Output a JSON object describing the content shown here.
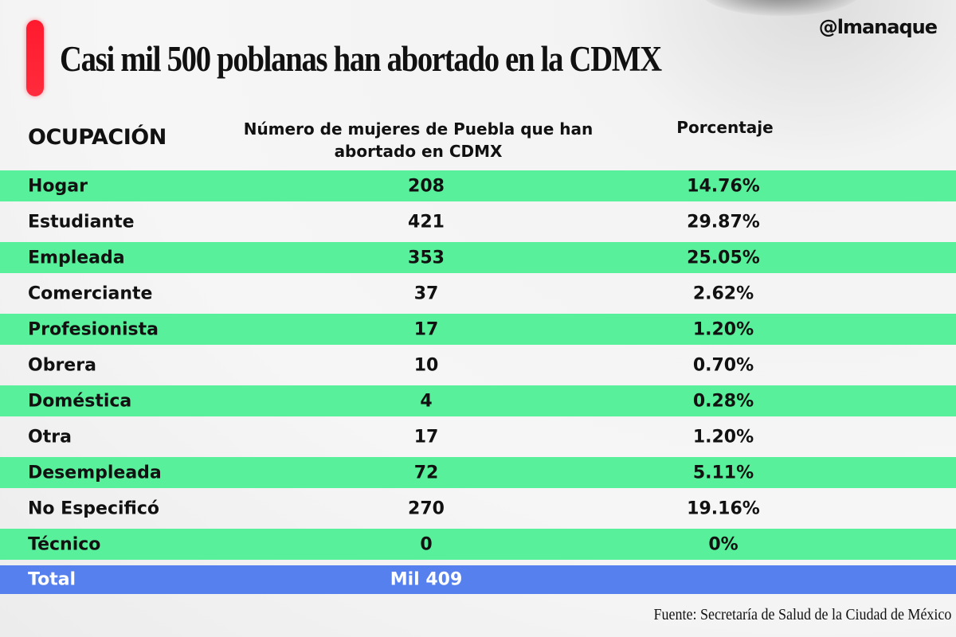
{
  "brand": "@lmanaque",
  "title": "Casi mil 500 poblanas han abortado en la CDMX",
  "colors": {
    "accent_red": "#ff1a2e",
    "row_green": "#58f09a",
    "total_blue": "#5580ee"
  },
  "chart_data": {
    "type": "table",
    "title": "Casi mil 500 poblanas han abortado en la CDMX",
    "columns": [
      "OCUPACIÓN",
      "Número de mujeres de Puebla que han abortado en CDMX",
      "Porcentaje"
    ],
    "rows": [
      {
        "occupation": "Hogar",
        "count": "208",
        "percent": "14.76%"
      },
      {
        "occupation": "Estudiante",
        "count": "421",
        "percent": "29.87%"
      },
      {
        "occupation": "Empleada",
        "count": "353",
        "percent": "25.05%"
      },
      {
        "occupation": "Comerciante",
        "count": "37",
        "percent": "2.62%"
      },
      {
        "occupation": "Profesionista",
        "count": "17",
        "percent": "1.20%"
      },
      {
        "occupation": "Obrera",
        "count": "10",
        "percent": "0.70%"
      },
      {
        "occupation": "Doméstica",
        "count": "4",
        "percent": "0.28%"
      },
      {
        "occupation": "Otra",
        "count": "17",
        "percent": "1.20%"
      },
      {
        "occupation": "Desempleada",
        "count": "72",
        "percent": "5.11%"
      },
      {
        "occupation": "No Especificó",
        "count": "270",
        "percent": "19.16%"
      },
      {
        "occupation": "Técnico",
        "count": "0",
        "percent": "0%"
      }
    ],
    "total": {
      "label": "Total",
      "count": "Mil 409"
    }
  },
  "source": "Fuente: Secretaría de Salud de la Ciudad de México"
}
